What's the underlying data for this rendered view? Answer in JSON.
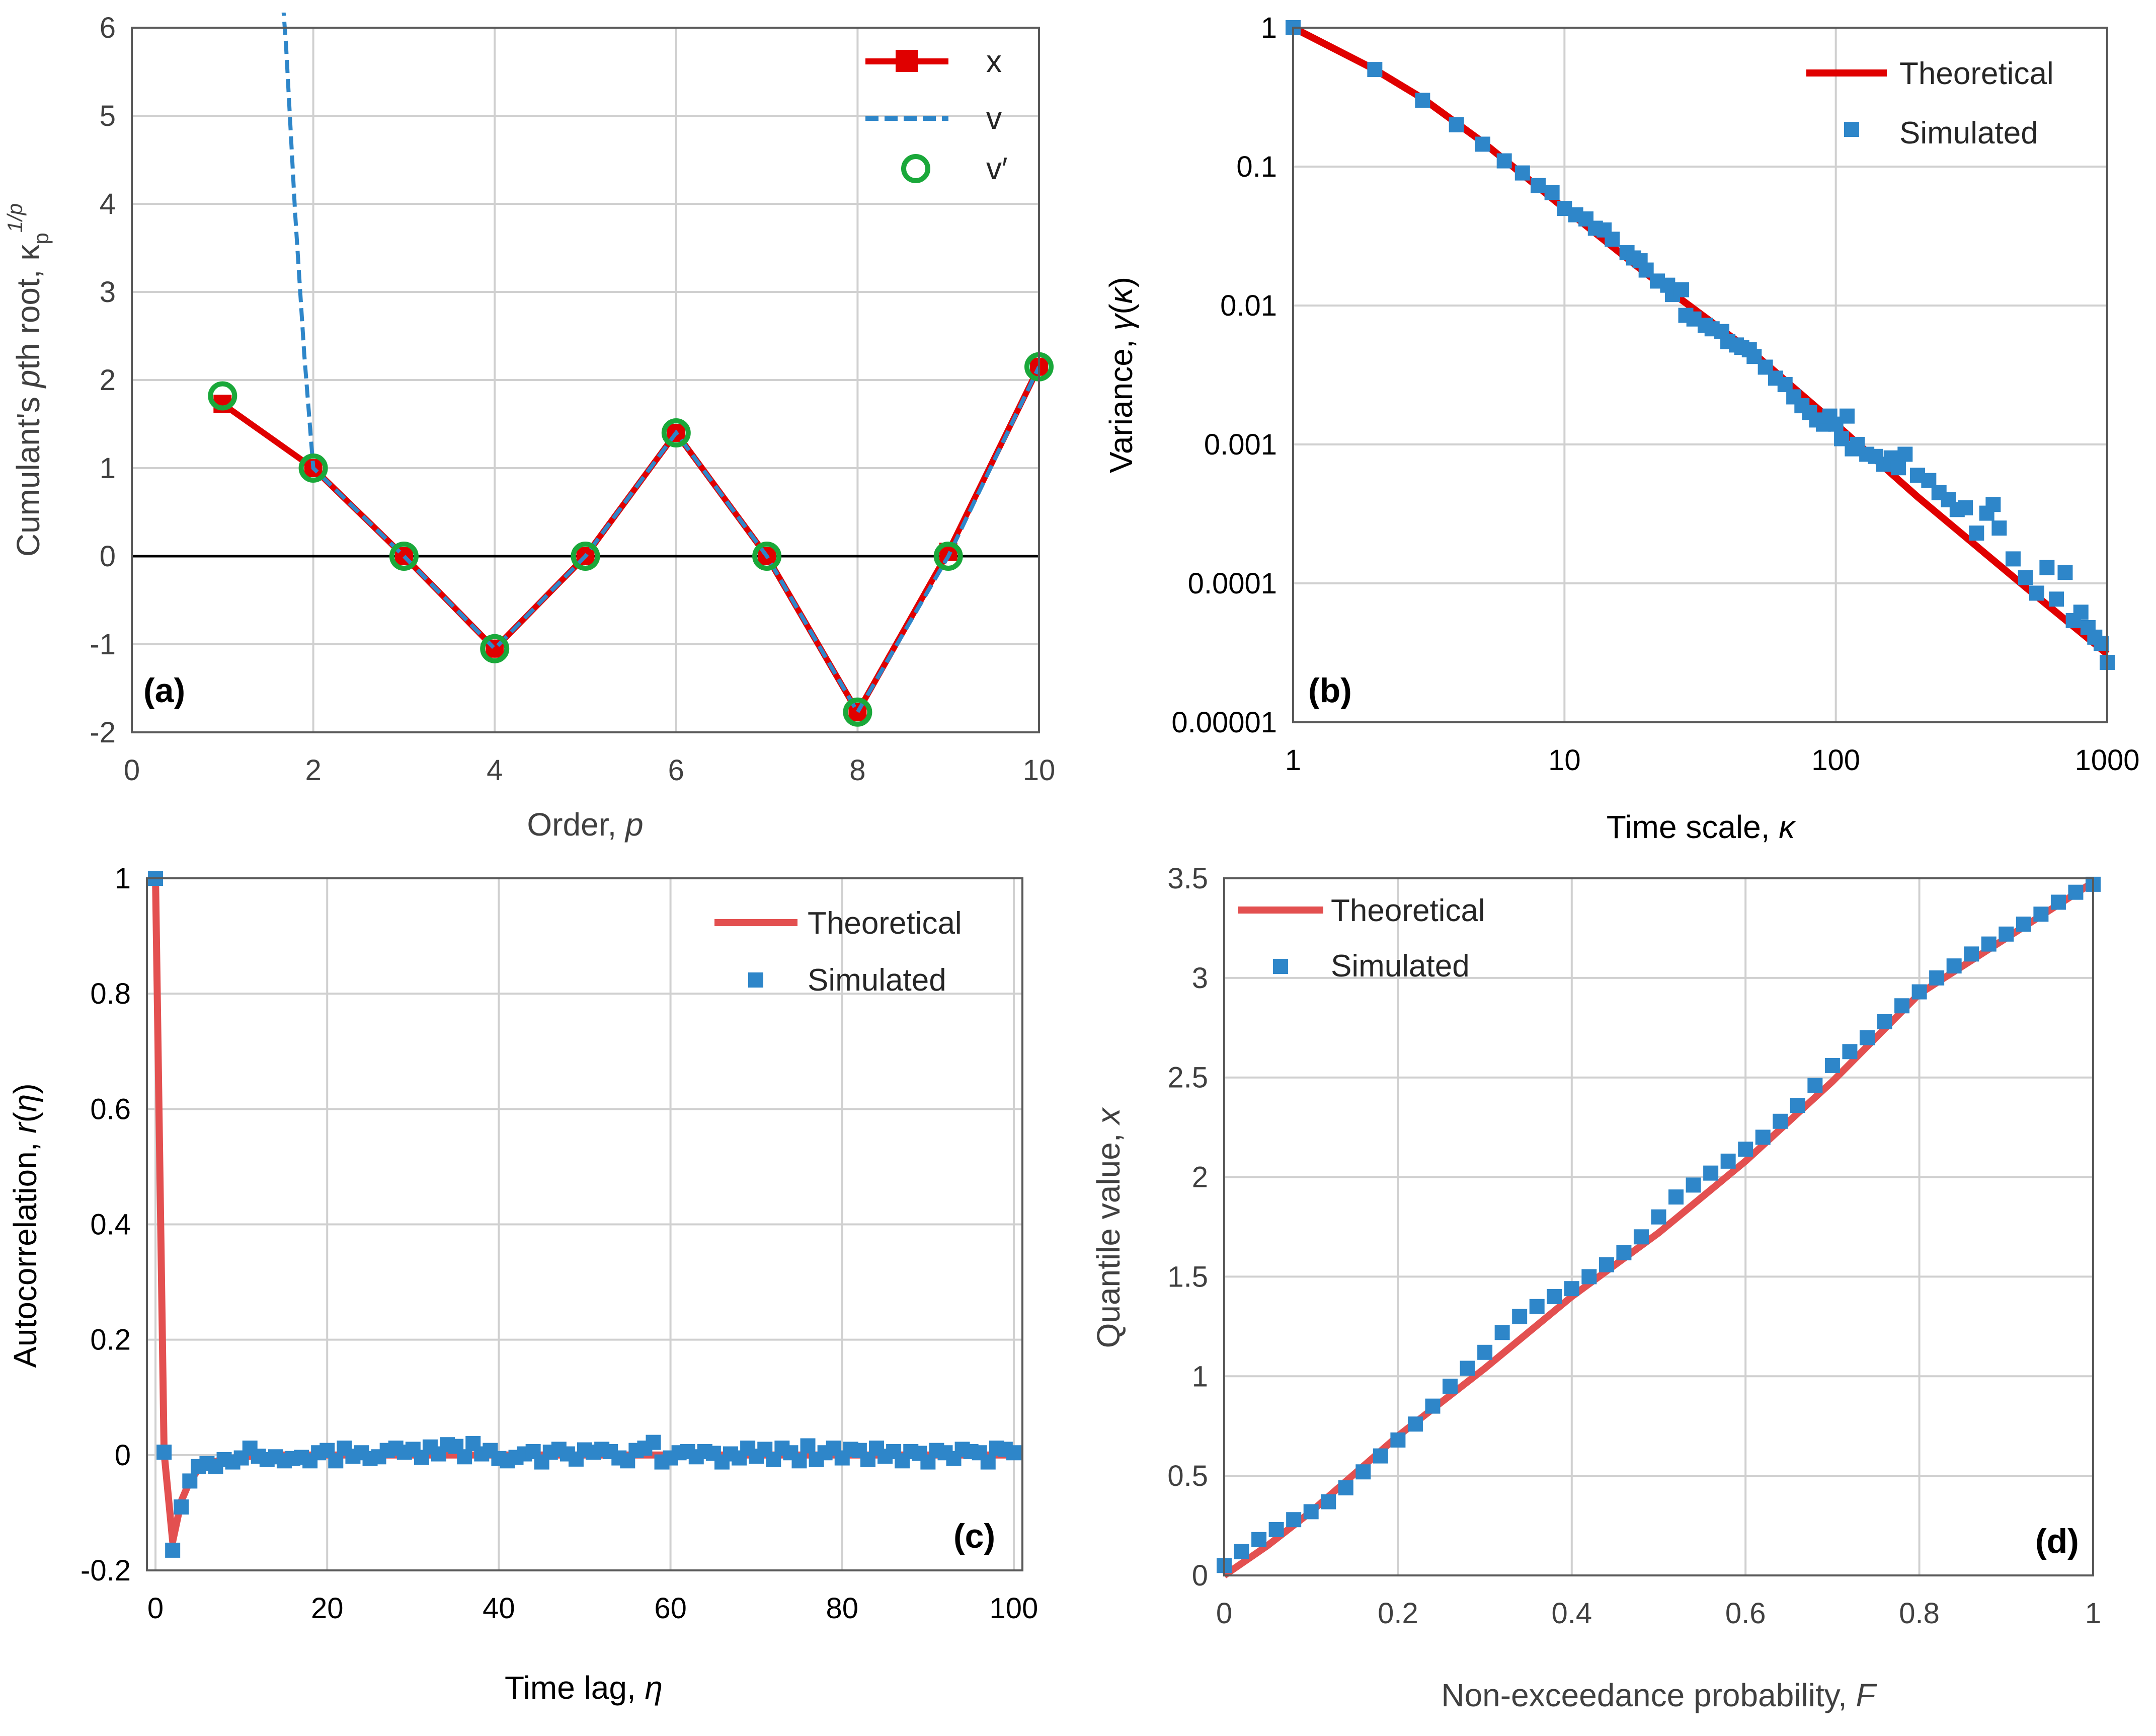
{
  "colors": {
    "red": "#e00000",
    "red_light": "#e35050",
    "blue": "#2e86c9",
    "green": "#1aa83a",
    "grid": "#d0d0d0",
    "zero_line": "#000000"
  },
  "chart_data": [
    {
      "id": "a",
      "type": "line",
      "panel_label": "(a)",
      "xlabel": "Order, p",
      "ylabel": "Cumulant's pth root, κp1/p",
      "xlim": [
        0,
        10
      ],
      "ylim": [
        -2,
        6
      ],
      "xticks": [
        "0",
        "2",
        "4",
        "6",
        "8",
        "10"
      ],
      "yticks": [
        "-2",
        "-1",
        "0",
        "1",
        "2",
        "3",
        "4",
        "5",
        "6"
      ],
      "legend_position": "top-right",
      "series": [
        {
          "name": "x",
          "style": "red-solid-square",
          "x": [
            1,
            2,
            3,
            4,
            5,
            6,
            7,
            8,
            9,
            10
          ],
          "y": [
            1.73,
            1.0,
            0.0,
            -1.05,
            0.0,
            1.4,
            0.0,
            -1.77,
            0.05,
            2.15
          ]
        },
        {
          "name": "v",
          "style": "blue-dashed",
          "x": [
            1.65,
            1.7,
            1.8,
            1.9,
            2.0,
            3,
            4,
            5,
            6,
            7,
            8,
            9,
            10
          ],
          "y": [
            6.5,
            5.8,
            3.9,
            2.3,
            1.0,
            0.0,
            -1.05,
            0.0,
            1.4,
            0.0,
            -1.77,
            0.0,
            2.15
          ]
        },
        {
          "name": "v′",
          "style": "green-circle",
          "x": [
            1,
            2,
            3,
            4,
            5,
            6,
            7,
            8,
            9,
            10
          ],
          "y": [
            1.82,
            1.0,
            0.0,
            -1.05,
            0.0,
            1.4,
            0.0,
            -1.77,
            0.0,
            2.15
          ]
        }
      ]
    },
    {
      "id": "b",
      "type": "scatter",
      "scale": "log-log",
      "panel_label": "(b)",
      "xlabel": "Time scale, κ",
      "ylabel": "Variance, γ(κ)",
      "xlim": [
        1,
        1000
      ],
      "ylim": [
        1e-05,
        1
      ],
      "xticks": [
        "1",
        "10",
        "100",
        "1000"
      ],
      "yticks": [
        "0.00001",
        "0.0001",
        "0.001",
        "0.01",
        "0.1",
        "1"
      ],
      "legend_position": "top-right",
      "series": [
        {
          "name": "Theoretical",
          "style": "red-line",
          "x": [
            1,
            2,
            3,
            5,
            10,
            20,
            50,
            100,
            200,
            500,
            1000
          ],
          "y": [
            1,
            0.5,
            0.31,
            0.15,
            0.05,
            0.017,
            0.0045,
            0.0014,
            0.00042,
            9.4e-05,
            3.1e-05
          ]
        },
        {
          "name": "Simulated",
          "style": "blue-square",
          "x": [
            1,
            2,
            3,
            4,
            5,
            6,
            7,
            8,
            9,
            10,
            11,
            12,
            13,
            14,
            15,
            17,
            18,
            19,
            20,
            22,
            24,
            25,
            27,
            28,
            30,
            33,
            35,
            38,
            40,
            43,
            45,
            48,
            50,
            55,
            60,
            65,
            70,
            75,
            80,
            85,
            90,
            95,
            100,
            105,
            110,
            115,
            120,
            130,
            140,
            150,
            160,
            170,
            180,
            200,
            220,
            240,
            260,
            280,
            300,
            330,
            360,
            380,
            400,
            450,
            500,
            550,
            600,
            650,
            700,
            750,
            800,
            850,
            900,
            950,
            1000
          ],
          "y": [
            1,
            0.5,
            0.3,
            0.2,
            0.145,
            0.11,
            0.09,
            0.073,
            0.065,
            0.05,
            0.045,
            0.042,
            0.036,
            0.035,
            0.03,
            0.024,
            0.022,
            0.021,
            0.018,
            0.015,
            0.014,
            0.012,
            0.013,
            0.0085,
            0.008,
            0.0072,
            0.0068,
            0.0065,
            0.0055,
            0.0052,
            0.005,
            0.0048,
            0.0043,
            0.0036,
            0.003,
            0.0027,
            0.0022,
            0.0019,
            0.0017,
            0.0015,
            0.0014,
            0.0016,
            0.0014,
            0.0011,
            0.0016,
            0.00093,
            0.001,
            0.00085,
            0.00082,
            0.00072,
            0.0008,
            0.00068,
            0.00085,
            0.0006,
            0.00055,
            0.00045,
            0.0004,
            0.00034,
            0.00035,
            0.00023,
            0.00032,
            0.00037,
            0.00025,
            0.00015,
            0.00011,
            8.5e-05,
            0.00013,
            7.7e-05,
            0.00012,
            5.4e-05,
            6.2e-05,
            4.8e-05,
            4.1e-05,
            3.7e-05,
            2.7e-05
          ]
        }
      ]
    },
    {
      "id": "c",
      "type": "scatter",
      "panel_label": "(c)",
      "xlabel": "Time lag, η",
      "ylabel": "Autocorrelation, r(η)",
      "xlim": [
        -1,
        101
      ],
      "ylim": [
        -0.2,
        1
      ],
      "xticks": [
        "0",
        "20",
        "40",
        "60",
        "80",
        "100"
      ],
      "yticks": [
        "-0.2",
        "0",
        "0.2",
        "0.4",
        "0.6",
        "0.8",
        "1"
      ],
      "legend_position": "top-right",
      "series": [
        {
          "name": "Theoretical",
          "style": "red-line",
          "x": [
            0,
            1,
            2,
            3,
            4,
            5,
            6,
            8,
            10,
            15,
            20,
            30,
            40,
            60,
            80,
            100
          ],
          "y": [
            1,
            0.005,
            -0.15,
            -0.08,
            -0.045,
            -0.025,
            -0.015,
            -0.007,
            -0.003,
            0,
            0,
            0,
            0,
            0,
            0,
            0
          ]
        },
        {
          "name": "Simulated",
          "style": "blue-square",
          "x": [
            0,
            1,
            2,
            3,
            4,
            5,
            6,
            7,
            8,
            9,
            10,
            11,
            12,
            13,
            14,
            15,
            16,
            17,
            18,
            19,
            20,
            21,
            22,
            23,
            24,
            25,
            26,
            27,
            28,
            29,
            30,
            31,
            32,
            33,
            34,
            35,
            36,
            37,
            38,
            39,
            40,
            41,
            42,
            43,
            44,
            45,
            46,
            47,
            48,
            49,
            50,
            51,
            52,
            53,
            54,
            55,
            56,
            57,
            58,
            59,
            60,
            61,
            62,
            63,
            64,
            65,
            66,
            67,
            68,
            69,
            70,
            71,
            72,
            73,
            74,
            75,
            76,
            77,
            78,
            79,
            80,
            81,
            82,
            83,
            84,
            85,
            86,
            87,
            88,
            89,
            90,
            91,
            92,
            93,
            94,
            95,
            96,
            97,
            98,
            99,
            100
          ],
          "y": [
            1,
            0.005,
            -0.165,
            -0.09,
            -0.045,
            -0.02,
            -0.015,
            -0.02,
            -0.008,
            -0.012,
            -0.005,
            0.012,
            -0.002,
            -0.008,
            -0.003,
            -0.01,
            -0.006,
            -0.004,
            -0.01,
            0.004,
            0.008,
            -0.01,
            0.012,
            -0.002,
            0.004,
            -0.006,
            -0.003,
            0.008,
            0.012,
            0.005,
            0.01,
            -0.004,
            0.014,
            0.002,
            0.018,
            0.015,
            -0.003,
            0.02,
            0.002,
            0.008,
            -0.006,
            -0.01,
            -0.004,
            0.002,
            0.006,
            -0.012,
            0.005,
            0.01,
            0.002,
            -0.007,
            0.009,
            0.005,
            0.01,
            0.006,
            -0.005,
            -0.01,
            0.008,
            0.012,
            0.022,
            -0.012,
            -0.005,
            0.004,
            0.006,
            -0.003,
            0.006,
            0.003,
            -0.012,
            0.002,
            -0.005,
            0.012,
            -0.002,
            0.01,
            -0.008,
            0.012,
            0.004,
            -0.01,
            0.016,
            -0.008,
            0.004,
            0.012,
            -0.005,
            0.01,
            0.008,
            -0.008,
            0.012,
            -0.002,
            0.006,
            -0.01,
            0.006,
            0.003,
            -0.012,
            0.008,
            0.004,
            -0.006,
            0.01,
            0.006,
            0.004,
            -0.012,
            0.012,
            0.01,
            0.004
          ]
        }
      ]
    },
    {
      "id": "d",
      "type": "scatter",
      "panel_label": "(d)",
      "xlabel": "Non-exceedance probability, F",
      "ylabel": "Quantile value, x",
      "xlim": [
        0,
        1
      ],
      "ylim": [
        0,
        3.5
      ],
      "xticks": [
        "0",
        "0.2",
        "0.4",
        "0.6",
        "0.8",
        "1"
      ],
      "yticks": [
        "0",
        "0.5",
        "1",
        "1.5",
        "2",
        "2.5",
        "3",
        "3.5"
      ],
      "legend_position": "top-left",
      "series": [
        {
          "name": "Theoretical",
          "style": "red-line",
          "x": [
            0,
            0.05,
            0.1,
            0.2,
            0.3,
            0.4,
            0.5,
            0.6,
            0.7,
            0.8,
            0.9,
            1
          ],
          "y": [
            0,
            0.15,
            0.32,
            0.7,
            1.04,
            1.4,
            1.72,
            2.08,
            2.48,
            2.92,
            3.2,
            3.48
          ]
        },
        {
          "name": "Simulated",
          "style": "blue-square",
          "x": [
            0,
            0.02,
            0.04,
            0.06,
            0.08,
            0.1,
            0.12,
            0.14,
            0.16,
            0.18,
            0.2,
            0.22,
            0.24,
            0.26,
            0.28,
            0.3,
            0.32,
            0.34,
            0.36,
            0.38,
            0.4,
            0.42,
            0.44,
            0.46,
            0.48,
            0.5,
            0.52,
            0.54,
            0.56,
            0.58,
            0.6,
            0.62,
            0.64,
            0.66,
            0.68,
            0.7,
            0.72,
            0.74,
            0.76,
            0.78,
            0.8,
            0.82,
            0.84,
            0.86,
            0.88,
            0.9,
            0.92,
            0.94,
            0.96,
            0.98,
            1
          ],
          "y": [
            0.05,
            0.12,
            0.18,
            0.23,
            0.28,
            0.32,
            0.37,
            0.44,
            0.52,
            0.6,
            0.68,
            0.76,
            0.85,
            0.95,
            1.04,
            1.12,
            1.22,
            1.3,
            1.35,
            1.4,
            1.44,
            1.5,
            1.56,
            1.62,
            1.7,
            1.8,
            1.9,
            1.96,
            2.02,
            2.08,
            2.14,
            2.2,
            2.28,
            2.36,
            2.46,
            2.56,
            2.63,
            2.7,
            2.78,
            2.86,
            2.93,
            3.0,
            3.06,
            3.12,
            3.17,
            3.22,
            3.27,
            3.32,
            3.38,
            3.43,
            3.47
          ]
        }
      ]
    }
  ]
}
